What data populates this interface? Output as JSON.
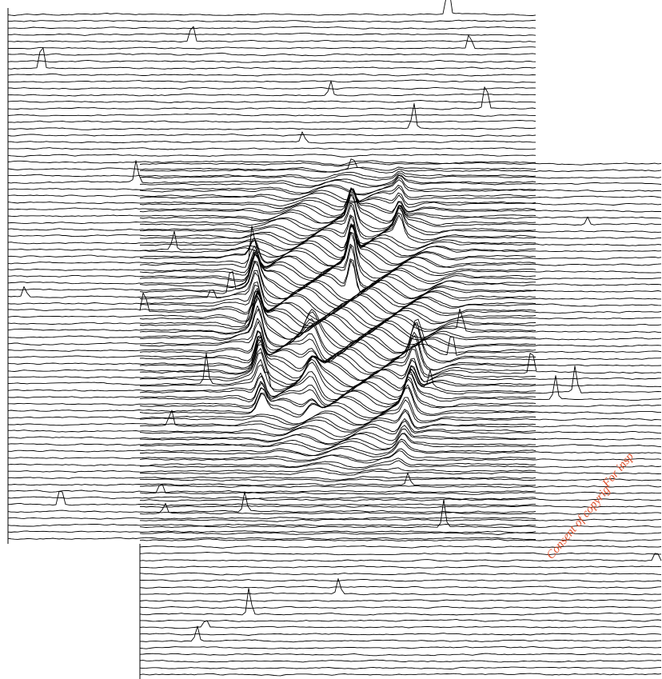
{
  "watermark": {
    "line1": "For insp",
    "line2": "Consent of copyrig"
  }
}
